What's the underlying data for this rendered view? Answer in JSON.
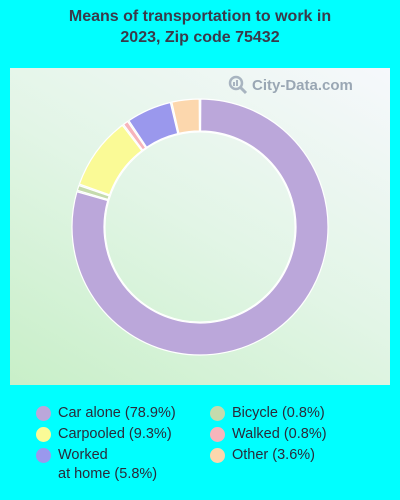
{
  "title_line1": "Means of transportation to work in",
  "title_line2": "2023, Zip code 75432",
  "watermark": "City-Data.com",
  "chart_data": {
    "type": "pie",
    "donut": true,
    "title": "Means of transportation to work in 2023, Zip code 75432",
    "legend_placement": "bottom",
    "slices": [
      {
        "label": "Car alone (78.9%)",
        "value": 78.9,
        "color": "#bba7da"
      },
      {
        "label": "Bicycle (0.8%)",
        "value": 0.8,
        "color": "#c5dbad"
      },
      {
        "label": "Carpooled (9.3%)",
        "value": 9.3,
        "color": "#fafa96"
      },
      {
        "label": "Walked (0.8%)",
        "value": 0.8,
        "color": "#f7b5bb"
      },
      {
        "label": "Worked\nat home (5.8%)",
        "value": 5.8,
        "color": "#9a98ed"
      },
      {
        "label": "Other (3.6%)",
        "value": 3.6,
        "color": "#fcd7ad"
      }
    ],
    "legend_order": [
      0,
      2,
      4,
      1,
      3,
      5
    ]
  }
}
